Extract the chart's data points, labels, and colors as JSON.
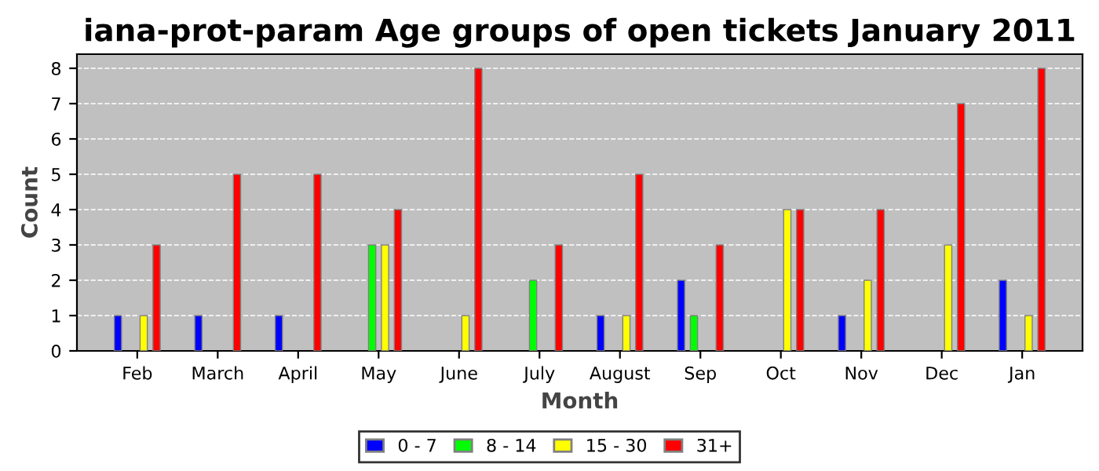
{
  "chart_data": {
    "type": "bar",
    "title": "iana-prot-param Age groups of open tickets January 2011",
    "xlabel": "Month",
    "ylabel": "Count",
    "categories": [
      "Feb",
      "March",
      "April",
      "May",
      "June",
      "July",
      "August",
      "Sep",
      "Oct",
      "Nov",
      "Dec",
      "Jan"
    ],
    "series": [
      {
        "name": "0 - 7",
        "color": "#0000ff",
        "values": [
          1,
          1,
          1,
          null,
          null,
          null,
          1,
          2,
          null,
          1,
          null,
          2
        ]
      },
      {
        "name": "8 - 14",
        "color": "#00ff00",
        "values": [
          null,
          null,
          null,
          3,
          null,
          2,
          null,
          1,
          null,
          null,
          null,
          null
        ]
      },
      {
        "name": "15 - 30",
        "color": "#ffff00",
        "values": [
          1,
          null,
          null,
          3,
          1,
          null,
          1,
          null,
          4,
          2,
          3,
          1
        ]
      },
      {
        "name": "31+",
        "color": "#ff0000",
        "values": [
          3,
          5,
          5,
          4,
          8,
          3,
          5,
          3,
          4,
          4,
          7,
          8
        ]
      }
    ],
    "ylim": [
      0,
      8.4
    ],
    "yticks": [
      0,
      1,
      2,
      3,
      4,
      5,
      6,
      7,
      8
    ],
    "grid": true,
    "legend": "bottom"
  }
}
